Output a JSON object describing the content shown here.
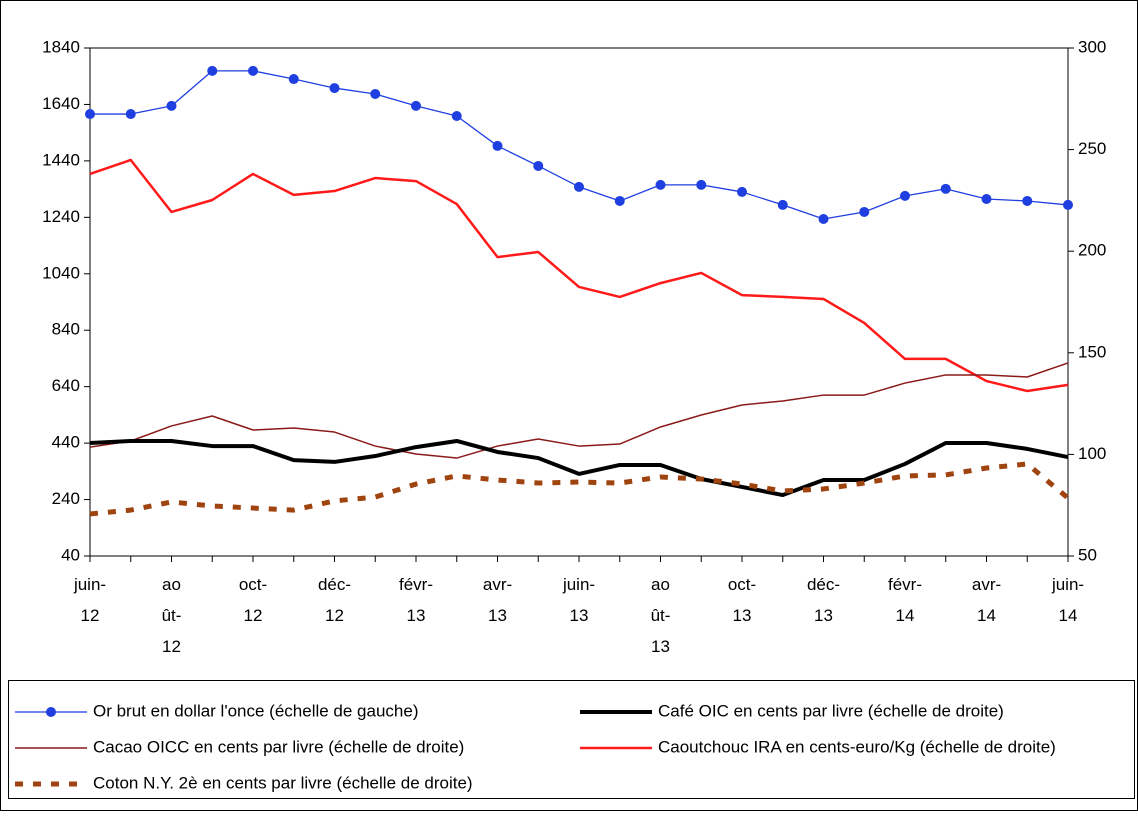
{
  "chart_data": {
    "type": "line",
    "categories": [
      "juin-\n12",
      null,
      "ao\nût-\n12",
      null,
      "oct-\n12",
      null,
      "déc-\n12",
      null,
      "févr-\n13",
      null,
      "avr-\n13",
      null,
      "juin-\n13",
      null,
      "ao\nût-\n13",
      null,
      "oct-\n13",
      null,
      "déc-\n13",
      null,
      "févr-\n14",
      null,
      "avr-\n14",
      null,
      "juin-\n14"
    ],
    "ylim": [
      40,
      1840
    ],
    "yticks": [
      40,
      240,
      440,
      640,
      840,
      1040,
      1240,
      1440,
      1640,
      1840
    ],
    "y2lim": [
      50,
      300
    ],
    "y2ticks": [
      50,
      100,
      150,
      200,
      250,
      300
    ],
    "series": [
      {
        "name": "Or brut en dollar l'once (échelle de gauche)",
        "color": "#1f3fe0",
        "style": "line-dots",
        "values": [
          1606,
          1606,
          1635,
          1759,
          1759,
          1730,
          1698,
          1677,
          1635,
          1599,
          1493,
          1422,
          1348,
          1298,
          1355,
          1355,
          1330,
          1284,
          1234,
          1259,
          1316,
          1341,
          1305,
          1298,
          1284
        ]
      },
      {
        "name": "Café  OIC en cents par livre (échelle de droite)",
        "color": "#000000",
        "style": "thick",
        "axis": "y2",
        "values": [
          105.6,
          106.6,
          106.6,
          104.1,
          104.1,
          97.2,
          96.3,
          99.2,
          103.6,
          106.6,
          101.2,
          98.2,
          90.4,
          94.8,
          94.8,
          87.9,
          84.0,
          80.0,
          87.4,
          87.4,
          95.3,
          105.6,
          105.6,
          102.7,
          98.7
        ]
      },
      {
        "name": "Cacao OICC en cents par livre (échelle de droite)",
        "color": "#8b1a1a",
        "style": "thin",
        "axis": "y2",
        "values": [
          103.6,
          106.6,
          114,
          118.9,
          112,
          113,
          111,
          104.1,
          100.2,
          98.2,
          104.1,
          107.6,
          104.1,
          105.1,
          113.5,
          119.4,
          124.3,
          126.3,
          129.2,
          129.2,
          135.1,
          139.1,
          139.1,
          138.1,
          145
        ]
      },
      {
        "name": "Caoutchouc IRA en cents-euro/Kg (échelle de droite)",
        "color": "#ff1a1a",
        "style": "medium",
        "axis": "y2",
        "values": [
          238,
          244.9,
          219.3,
          225.2,
          238,
          227.7,
          229.6,
          236,
          234.5,
          223.2,
          197.1,
          199.6,
          182.4,
          177.5,
          184.3,
          189.3,
          178.4,
          177.5,
          176.5,
          164.7,
          147,
          147,
          136.1,
          131.2,
          134.2
        ]
      },
      {
        "name": "Coton N.Y. 2è en cents par livre (échelle de droite)",
        "color": "#a0440f",
        "style": "dashed",
        "axis": "y2",
        "values": [
          70.7,
          72.6,
          76.6,
          74.6,
          73.6,
          72.6,
          77.1,
          79,
          85.4,
          89.4,
          87.4,
          85.9,
          86.4,
          85.9,
          88.9,
          87.9,
          85.4,
          82,
          83,
          85.9,
          89.4,
          89.9,
          93.3,
          95.3,
          78.5
        ]
      }
    ]
  }
}
